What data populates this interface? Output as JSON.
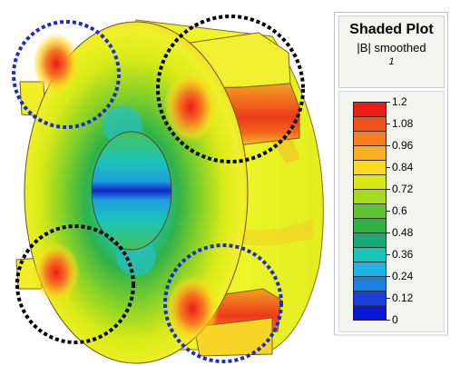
{
  "legend": {
    "title": "Shaded Plot",
    "subtitle": "|B| smoothed",
    "index": "1",
    "tick_labels": [
      "1.2",
      "1.08",
      "0.96",
      "0.84",
      "0.72",
      "0.6",
      "0.48",
      "0.36",
      "0.24",
      "0.12",
      "0"
    ],
    "colors": [
      "#ee1c17",
      "#f0501a",
      "#f57e23",
      "#f8ad22",
      "#fbd91f",
      "#d8ea16",
      "#a5d91e",
      "#5fc431",
      "#2fb244",
      "#1ba876",
      "#17c4b6",
      "#20b3e6",
      "#1d7fe0",
      "#1a3fd8",
      "#0a17d6"
    ]
  },
  "colors": {
    "highlight_black": "#000000",
    "highlight_blue": "#1a2bd0"
  }
}
